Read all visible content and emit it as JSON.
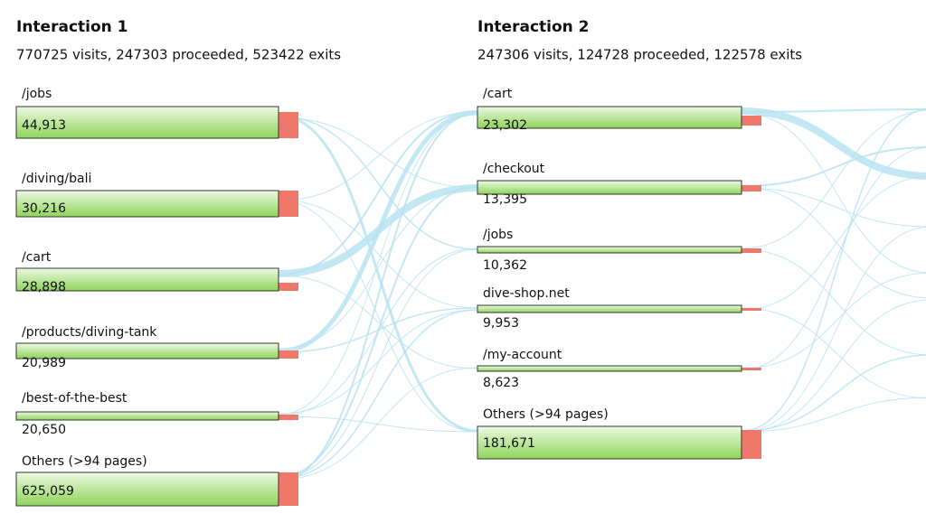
{
  "columns": [
    {
      "title": "Interaction 1",
      "summary": "770725 visits, 247303 proceeded, 523422 exits",
      "nodes": [
        {
          "label": "/jobs",
          "value": "44,913"
        },
        {
          "label": "/diving/bali",
          "value": "30,216"
        },
        {
          "label": "/cart",
          "value": "28,898"
        },
        {
          "label": "/products/diving-tank",
          "value": "20,989"
        },
        {
          "label": "/best-of-the-best",
          "value": "20,650"
        },
        {
          "label": "Others (>94 pages)",
          "value": "625,059"
        }
      ]
    },
    {
      "title": "Interaction 2",
      "summary": "247306 visits, 124728 proceeded, 122578 exits",
      "nodes": [
        {
          "label": "/cart",
          "value": "23,302"
        },
        {
          "label": "/checkout",
          "value": "13,395"
        },
        {
          "label": "/jobs",
          "value": "10,362"
        },
        {
          "label": "dive-shop.net",
          "value": "9,953"
        },
        {
          "label": "/my-account",
          "value": "8,623"
        },
        {
          "label": "Others (>94 pages)",
          "value": "181,671"
        }
      ]
    }
  ]
}
